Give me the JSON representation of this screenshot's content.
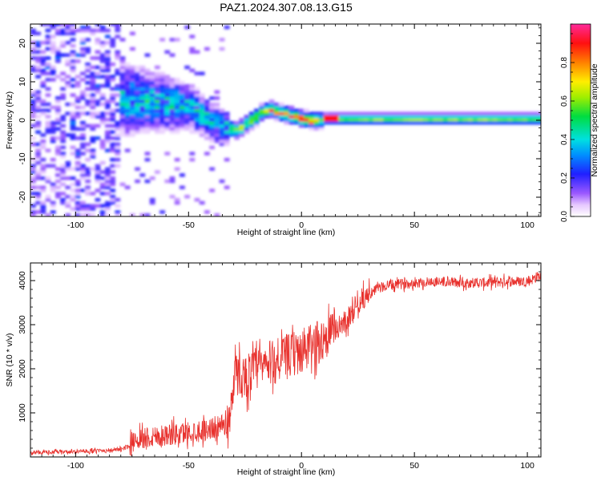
{
  "figure": {
    "title": "PAZ1.2024.307.08.13.G15"
  },
  "chart_data": [
    {
      "type": "heatmap",
      "xlabel": "Height of straight line (km)",
      "ylabel": "Frequency (Hz)",
      "xlim": [
        -120,
        106
      ],
      "ylim": [
        -25,
        25
      ],
      "xticks": [
        -100,
        -50,
        0,
        50,
        100
      ],
      "yticks": [
        -20,
        -10,
        0,
        10,
        20
      ],
      "colorbar": {
        "label": "Normalized spectral amplitude",
        "range": [
          0,
          1
        ],
        "ticks": [
          0.0,
          0.2,
          0.4,
          0.6,
          0.8
        ],
        "colormap": "rainbow (white-violet-blue-cyan-green-yellow-orange-red-magenta)"
      },
      "ridge": [
        [
          -80,
          5
        ],
        [
          -70,
          5
        ],
        [
          -60,
          4
        ],
        [
          -50,
          3
        ],
        [
          -45,
          1
        ],
        [
          -40,
          -1
        ],
        [
          -35,
          -2
        ],
        [
          -30,
          -3
        ],
        [
          -27,
          -2
        ],
        [
          -25,
          -1
        ],
        [
          -22,
          0
        ],
        [
          -18,
          2
        ],
        [
          -15,
          2.5
        ],
        [
          -12,
          2
        ],
        [
          -10,
          1.5
        ],
        [
          -6,
          1
        ],
        [
          -3,
          0.5
        ],
        [
          0,
          0
        ],
        [
          5,
          -0.5
        ],
        [
          10,
          0
        ],
        [
          20,
          0
        ],
        [
          30,
          0
        ],
        [
          50,
          0
        ],
        [
          70,
          0
        ],
        [
          90,
          0
        ],
        [
          106,
          0
        ]
      ]
    },
    {
      "type": "line",
      "xlabel": "Height of straight line (km)",
      "ylabel": "SNR (10 * v/v)",
      "xlim": [
        -120,
        106
      ],
      "ylim": [
        0,
        4400
      ],
      "xticks": [
        -100,
        -50,
        0,
        50,
        100
      ],
      "yticks": [
        1000,
        2000,
        3000,
        4000
      ],
      "grid": false,
      "series": [
        {
          "color": "#e8302c",
          "x": [
            -120,
            -110,
            -100,
            -90,
            -80,
            -76,
            -74,
            -70,
            -65,
            -60,
            -55,
            -50,
            -45,
            -40,
            -35,
            -32,
            -30,
            -28,
            -25,
            -20,
            -15,
            -10,
            -5,
            0,
            5,
            10,
            15,
            20,
            25,
            30,
            35,
            40,
            50,
            60,
            70,
            80,
            90,
            100,
            103,
            105
          ],
          "y": [
            100,
            110,
            120,
            140,
            170,
            250,
            400,
            450,
            480,
            500,
            520,
            560,
            600,
            650,
            700,
            800,
            1800,
            1900,
            1800,
            2000,
            2100,
            2200,
            2300,
            2400,
            2500,
            2700,
            2900,
            3100,
            3500,
            3700,
            3850,
            3900,
            3950,
            3980,
            3950,
            3950,
            3980,
            3980,
            4050,
            4100
          ]
        }
      ]
    }
  ]
}
